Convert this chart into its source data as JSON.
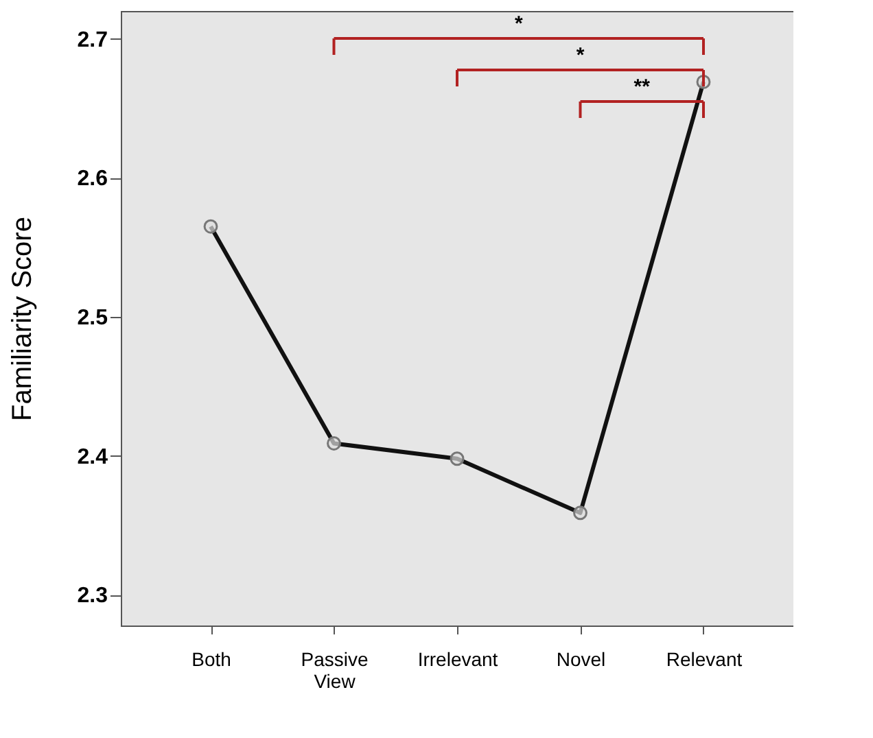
{
  "chart_data": {
    "type": "line",
    "ylabel": "Familiarity Score",
    "categories": [
      "Both",
      "Passive View",
      "Irrelevant",
      "Novel",
      "Relevant"
    ],
    "series": [
      {
        "color": "#111111",
        "values": [
          2.565,
          2.409,
          2.398,
          2.359,
          2.669
        ]
      }
    ],
    "ylim": [
      2.278,
      2.72
    ],
    "yticks": [
      2.3,
      2.4,
      2.5,
      2.6,
      2.7
    ],
    "grid": false,
    "marker": "circle",
    "line_style": "solid",
    "annotations": [
      "*",
      "*",
      "**"
    ]
  }
}
